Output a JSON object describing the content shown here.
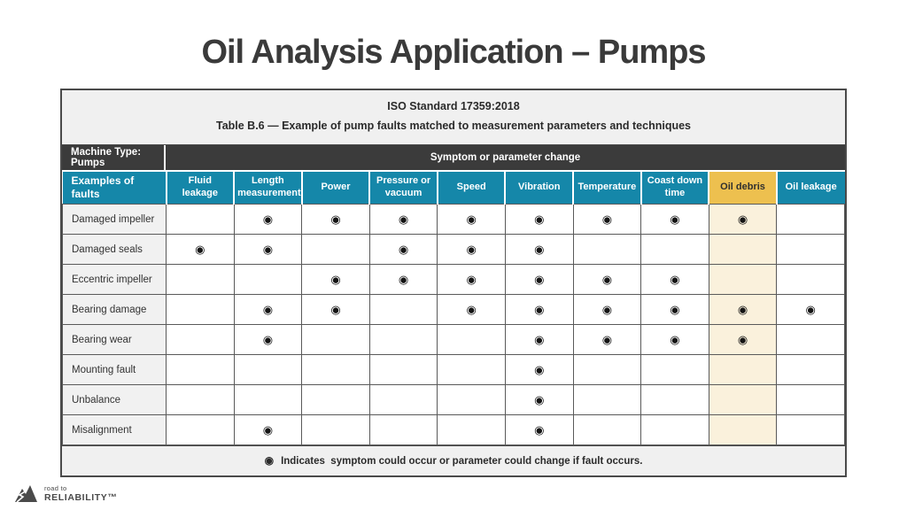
{
  "page": {
    "title": "Oil Analysis Application – Pumps"
  },
  "table": {
    "caption_line1": "ISO Standard 17359:2018",
    "caption_line2": "Table B.6 — Example of pump faults matched to measurement parameters and techniques",
    "machine_type_label": "Machine Type: Pumps",
    "symptom_header": "Symptom or parameter change",
    "columns": [
      "Examples of faults",
      "Fluid leakage",
      "Length measurement",
      "Power",
      "Pressure or vacuum",
      "Speed",
      "Vibration",
      "Temperature",
      "Coast down time",
      "Oil debris",
      "Oil leakage"
    ],
    "highlighted_column": "Oil debris",
    "marker": "◉",
    "rows": [
      {
        "fault": "Damaged impeller",
        "marks": [
          0,
          1,
          1,
          1,
          1,
          1,
          1,
          1,
          1,
          0
        ]
      },
      {
        "fault": "Damaged seals",
        "marks": [
          1,
          1,
          0,
          1,
          1,
          1,
          0,
          0,
          0,
          0
        ]
      },
      {
        "fault": "Eccentric impeller",
        "marks": [
          0,
          0,
          1,
          1,
          1,
          1,
          1,
          1,
          0,
          0
        ]
      },
      {
        "fault": "Bearing damage",
        "marks": [
          0,
          1,
          1,
          0,
          1,
          1,
          1,
          1,
          1,
          1
        ]
      },
      {
        "fault": "Bearing wear",
        "marks": [
          0,
          1,
          0,
          0,
          0,
          1,
          1,
          1,
          1,
          0
        ]
      },
      {
        "fault": "Mounting fault",
        "marks": [
          0,
          0,
          0,
          0,
          0,
          1,
          0,
          0,
          0,
          0
        ]
      },
      {
        "fault": "Unbalance",
        "marks": [
          0,
          0,
          0,
          0,
          0,
          1,
          0,
          0,
          0,
          0
        ]
      },
      {
        "fault": "Misalignment",
        "marks": [
          0,
          1,
          0,
          0,
          0,
          1,
          0,
          0,
          0,
          0
        ]
      }
    ],
    "footnote": "Indicates  symptom could occur or parameter could change if fault occurs."
  },
  "footer_logo": {
    "top": "road to",
    "bottom": "RELIABILITY™"
  },
  "colors": {
    "accent_blue": "#1587A9",
    "dark_band": "#3B3B3B",
    "highlight_yellow": "#EDC04F",
    "highlight_cream": "#FAF1DC",
    "band_gray": "#F0F0F0",
    "title_gray": "#3A3A3A"
  }
}
